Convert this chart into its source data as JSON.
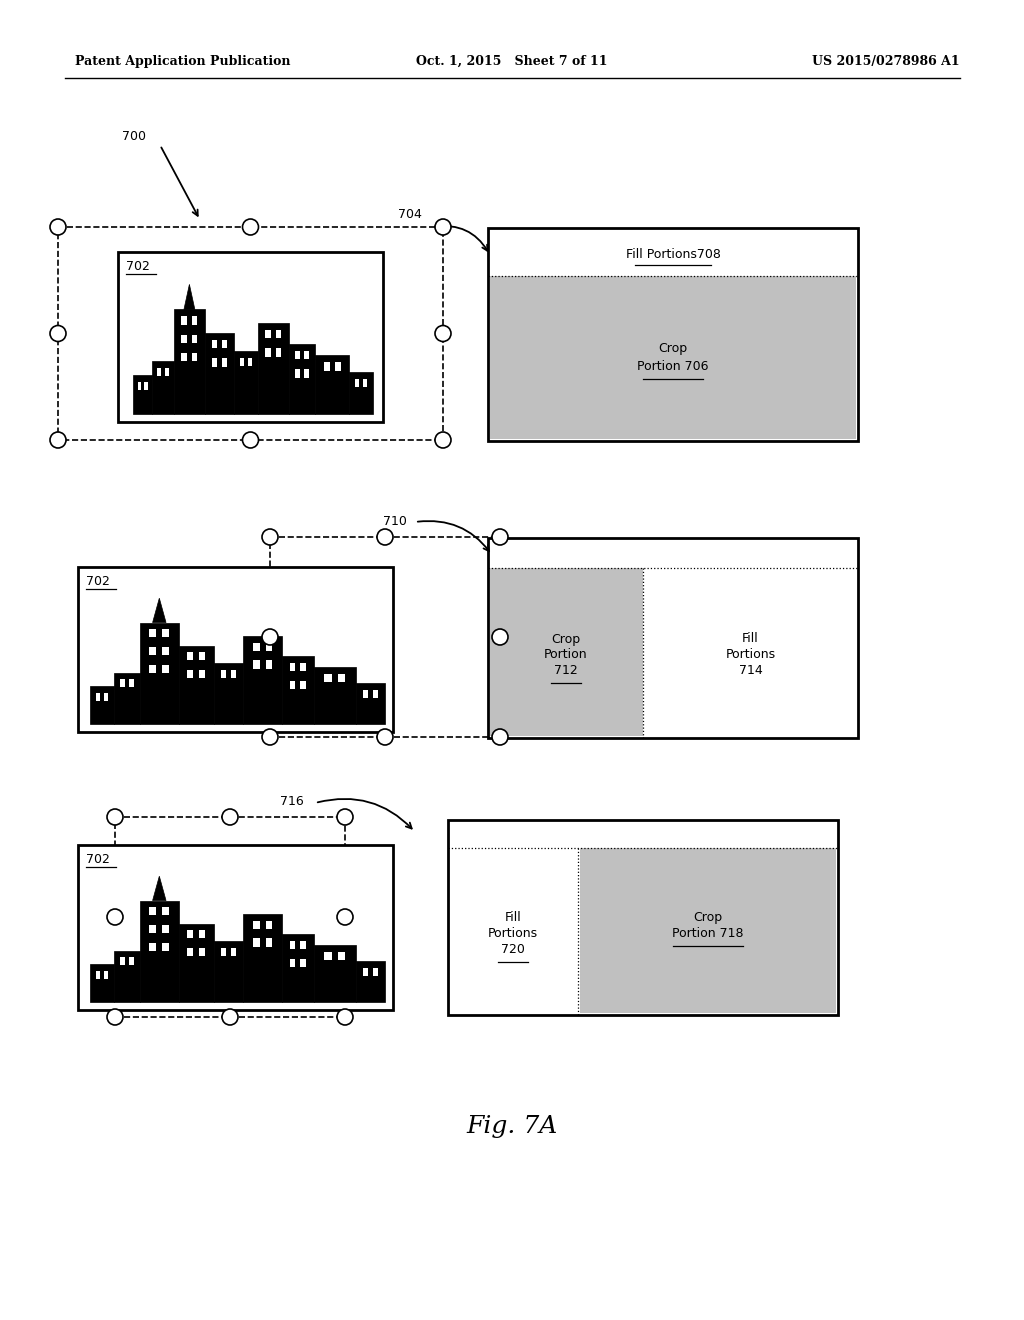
{
  "header_left": "Patent Application Publication",
  "header_mid": "Oct. 1, 2015   Sheet 7 of 11",
  "header_right": "US 2015/0278986 A1",
  "fig_label": "Fig. 7A",
  "bg_color": "#ffffff",
  "gray_fill": "#c0c0c0",
  "groups": [
    {
      "id": 1,
      "ref_label": "700",
      "arrow_label": "704",
      "crop_label": "Crop\nPortion 706",
      "fill_label": "Fill Portions708",
      "right_layout": "top_white_bottom_gray"
    },
    {
      "id": 2,
      "ref_label": "",
      "arrow_label": "710",
      "crop_label": "Crop\nPortion\n712",
      "fill_label": "Fill\nPortions\n714",
      "right_layout": "left_gray_right_white"
    },
    {
      "id": 3,
      "ref_label": "",
      "arrow_label": "716",
      "crop_label": "Crop\nPortion 718",
      "fill_label": "Fill\nPortions\n720",
      "right_layout": "left_white_right_gray"
    }
  ]
}
